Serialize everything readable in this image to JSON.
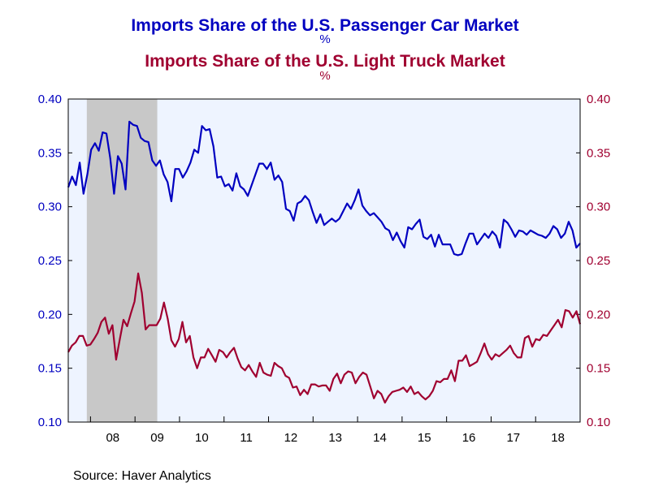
{
  "chart_data": {
    "type": "line",
    "titles": [
      {
        "text": "Imports Share of the U.S. Passenger Car Market",
        "unit": "%",
        "color": "#0000c0"
      },
      {
        "text": "Imports Share of the U.S. Light Truck Market",
        "unit": "%",
        "color": "#a00030"
      }
    ],
    "x_start": 2007.5,
    "x_end": 2019.0,
    "x_ticks": [
      "08",
      "09",
      "10",
      "11",
      "12",
      "13",
      "14",
      "15",
      "16",
      "17",
      "18"
    ],
    "recession_shade": {
      "from": 2007.917,
      "to": 2009.5,
      "color": "#c8c8c8"
    },
    "plot_background": "#eef4ff",
    "left_axis": {
      "ylim": [
        0.1,
        0.4
      ],
      "ticks": [
        "0.10",
        "0.15",
        "0.20",
        "0.25",
        "0.30",
        "0.35",
        "0.40"
      ],
      "color": "#0000c0"
    },
    "right_axis": {
      "ylim": [
        0.1,
        0.4
      ],
      "ticks": [
        "0.10",
        "0.15",
        "0.20",
        "0.25",
        "0.30",
        "0.35",
        "0.40"
      ],
      "color": "#a00030"
    },
    "series": [
      {
        "name": "Imports Share of the U.S. Passenger Car Market",
        "color": "#0000c0",
        "axis": "left",
        "values": [
          0.318,
          0.328,
          0.32,
          0.341,
          0.312,
          0.33,
          0.353,
          0.359,
          0.352,
          0.369,
          0.368,
          0.345,
          0.312,
          0.347,
          0.34,
          0.316,
          0.379,
          0.376,
          0.375,
          0.364,
          0.361,
          0.36,
          0.343,
          0.338,
          0.343,
          0.33,
          0.323,
          0.305,
          0.335,
          0.335,
          0.327,
          0.333,
          0.341,
          0.353,
          0.35,
          0.375,
          0.371,
          0.372,
          0.356,
          0.327,
          0.328,
          0.319,
          0.321,
          0.315,
          0.331,
          0.319,
          0.316,
          0.31,
          0.32,
          0.33,
          0.34,
          0.34,
          0.335,
          0.341,
          0.325,
          0.329,
          0.323,
          0.298,
          0.296,
          0.287,
          0.303,
          0.305,
          0.31,
          0.306,
          0.295,
          0.285,
          0.293,
          0.283,
          0.286,
          0.289,
          0.286,
          0.289,
          0.296,
          0.303,
          0.298,
          0.306,
          0.316,
          0.301,
          0.296,
          0.292,
          0.294,
          0.29,
          0.286,
          0.28,
          0.278,
          0.269,
          0.276,
          0.268,
          0.262,
          0.281,
          0.279,
          0.284,
          0.288,
          0.272,
          0.27,
          0.274,
          0.263,
          0.274,
          0.265,
          0.265,
          0.265,
          0.256,
          0.255,
          0.256,
          0.266,
          0.275,
          0.275,
          0.265,
          0.27,
          0.275,
          0.271,
          0.277,
          0.273,
          0.262,
          0.288,
          0.285,
          0.279,
          0.272,
          0.278,
          0.277,
          0.274,
          0.278,
          0.276,
          0.274,
          0.273,
          0.271,
          0.275,
          0.282,
          0.279,
          0.271,
          0.275,
          0.286,
          0.278,
          0.262,
          0.266
        ]
      },
      {
        "name": "Imports Share of the U.S. Light Truck Market",
        "color": "#a00030",
        "axis": "right",
        "values": [
          0.165,
          0.171,
          0.174,
          0.18,
          0.18,
          0.171,
          0.172,
          0.177,
          0.183,
          0.193,
          0.197,
          0.182,
          0.19,
          0.158,
          0.177,
          0.195,
          0.189,
          0.201,
          0.212,
          0.238,
          0.22,
          0.186,
          0.19,
          0.19,
          0.19,
          0.196,
          0.211,
          0.196,
          0.176,
          0.17,
          0.177,
          0.193,
          0.174,
          0.18,
          0.16,
          0.15,
          0.16,
          0.16,
          0.168,
          0.162,
          0.156,
          0.167,
          0.165,
          0.16,
          0.165,
          0.169,
          0.159,
          0.151,
          0.148,
          0.153,
          0.147,
          0.142,
          0.155,
          0.146,
          0.144,
          0.143,
          0.155,
          0.152,
          0.15,
          0.143,
          0.141,
          0.132,
          0.133,
          0.125,
          0.13,
          0.126,
          0.135,
          0.135,
          0.133,
          0.134,
          0.134,
          0.129,
          0.14,
          0.145,
          0.136,
          0.144,
          0.147,
          0.146,
          0.136,
          0.142,
          0.146,
          0.144,
          0.133,
          0.122,
          0.129,
          0.126,
          0.118,
          0.124,
          0.128,
          0.129,
          0.13,
          0.132,
          0.128,
          0.133,
          0.126,
          0.128,
          0.124,
          0.121,
          0.124,
          0.129,
          0.138,
          0.137,
          0.14,
          0.14,
          0.148,
          0.138,
          0.157,
          0.157,
          0.162,
          0.152,
          0.154,
          0.156,
          0.164,
          0.173,
          0.163,
          0.158,
          0.163,
          0.161,
          0.164,
          0.167,
          0.171,
          0.164,
          0.16,
          0.16,
          0.178,
          0.18,
          0.17,
          0.177,
          0.176,
          0.181,
          0.18,
          0.185,
          0.19,
          0.195,
          0.188,
          0.204,
          0.203,
          0.197,
          0.203,
          0.191
        ]
      }
    ]
  },
  "source": "Source:  Haver Analytics"
}
